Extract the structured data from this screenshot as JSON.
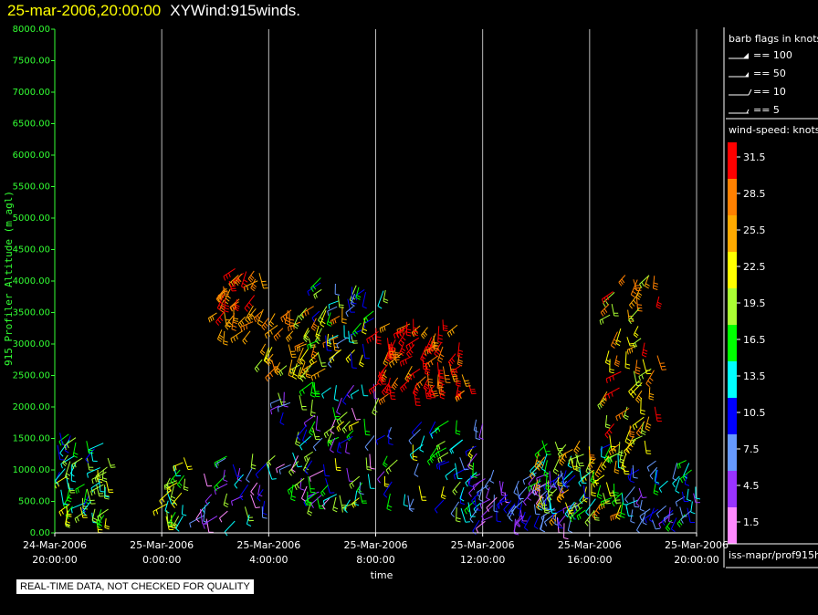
{
  "title": {
    "date": "25-mar-2006,20:00:00",
    "name": "XYWind:915winds."
  },
  "note": "REAL-TIME DATA, NOT CHECKED FOR QUALITY",
  "colors": {
    "axis_y": "#33ff33",
    "gridline": "#bbbbbb",
    "background": "#000000"
  },
  "legend": {
    "barb_title": "barb flags in knots",
    "barb_items": [
      {
        "label": "== 100",
        "kind": "pennant"
      },
      {
        "label": "== 50",
        "kind": "flag"
      },
      {
        "label": "== 10",
        "kind": "full"
      },
      {
        "label": "== 5",
        "kind": "half"
      }
    ],
    "speed_title": "wind-speed: knots",
    "speed_scale": [
      {
        "label": "31.5",
        "color": "#ff0000"
      },
      {
        "label": "28.5",
        "color": "#ff8000"
      },
      {
        "label": "25.5",
        "color": "#ffaa00"
      },
      {
        "label": "22.5",
        "color": "#ffff00"
      },
      {
        "label": "19.5",
        "color": "#aaff33"
      },
      {
        "label": "16.5",
        "color": "#00ff00"
      },
      {
        "label": "13.5",
        "color": "#00ffff"
      },
      {
        "label": "10.5",
        "color": "#0000ff"
      },
      {
        "label": "7.5",
        "color": "#6699ff"
      },
      {
        "label": "4.5",
        "color": "#9933ff"
      },
      {
        "label": "1.5",
        "color": "#ff88ff"
      }
    ],
    "source": "iss-mapr/prof915h"
  },
  "chart_data": {
    "type": "scatter",
    "title": "",
    "xlabel": "time",
    "ylabel": "915 Profiler Altitude (m agl)",
    "ylim": [
      0,
      8000
    ],
    "yticks": [
      "0.00",
      "500.00",
      "1000.00",
      "1500.00",
      "2000.00",
      "2500.00",
      "3000.00",
      "3500.00",
      "4000.00",
      "4500.00",
      "5000.00",
      "5500.00",
      "6000.00",
      "6500.00",
      "7000.00",
      "7500.00",
      "8000.00"
    ],
    "xlim": [
      "24-Mar-2006 20:00:00",
      "25-Mar-2006 20:00:00"
    ],
    "xticks": [
      {
        "date": "24-Mar-2006",
        "time": "20:00:00",
        "hour": 0
      },
      {
        "date": "25-Mar-2006",
        "time": "0:00:00",
        "hour": 4
      },
      {
        "date": "25-Mar-2006",
        "time": "4:00:00",
        "hour": 8
      },
      {
        "date": "25-Mar-2006",
        "time": "8:00:00",
        "hour": 12
      },
      {
        "date": "25-Mar-2006",
        "time": "12:00:00",
        "hour": 16
      },
      {
        "date": "25-Mar-2006",
        "time": "16:00:00",
        "hour": 20
      },
      {
        "date": "25-Mar-2006",
        "time": "20:00:00",
        "hour": 24
      }
    ],
    "grid": "vertical",
    "clusters": [
      {
        "hours": [
          0.1,
          2.0
        ],
        "alt": [
          200,
          1600
        ],
        "speed": [
          10,
          24
        ],
        "density": 60
      },
      {
        "hours": [
          4.1,
          5.1
        ],
        "alt": [
          150,
          1200
        ],
        "speed": [
          12,
          24
        ],
        "density": 22
      },
      {
        "hours": [
          5.4,
          8.0
        ],
        "alt": [
          150,
          1300
        ],
        "speed": [
          1,
          20
        ],
        "density": 34
      },
      {
        "hours": [
          6.0,
          7.8
        ],
        "alt": [
          3200,
          4200
        ],
        "speed": [
          24,
          32
        ],
        "density": 38
      },
      {
        "hours": [
          7.6,
          10.8
        ],
        "alt": [
          2600,
          3600
        ],
        "speed": [
          18,
          30
        ],
        "density": 48
      },
      {
        "hours": [
          8.2,
          12.2
        ],
        "alt": [
          400,
          2400
        ],
        "speed": [
          2,
          22
        ],
        "density": 90
      },
      {
        "hours": [
          9.8,
          12.5
        ],
        "alt": [
          2800,
          4100
        ],
        "speed": [
          6,
          24
        ],
        "density": 40
      },
      {
        "hours": [
          12.0,
          15.6
        ],
        "alt": [
          2200,
          3400
        ],
        "speed": [
          26,
          34
        ],
        "density": 80
      },
      {
        "hours": [
          12.2,
          16.0
        ],
        "alt": [
          300,
          1800
        ],
        "speed": [
          5,
          22
        ],
        "density": 60
      },
      {
        "hours": [
          15.8,
          19.6
        ],
        "alt": [
          150,
          1000
        ],
        "speed": [
          2,
          12
        ],
        "density": 80
      },
      {
        "hours": [
          18.0,
          21.6
        ],
        "alt": [
          300,
          1500
        ],
        "speed": [
          10,
          28
        ],
        "density": 90
      },
      {
        "hours": [
          20.6,
          22.6
        ],
        "alt": [
          1400,
          4100
        ],
        "speed": [
          18,
          32
        ],
        "density": 60
      },
      {
        "hours": [
          21.6,
          24.0
        ],
        "alt": [
          200,
          1200
        ],
        "speed": [
          4,
          16
        ],
        "density": 45
      }
    ]
  }
}
